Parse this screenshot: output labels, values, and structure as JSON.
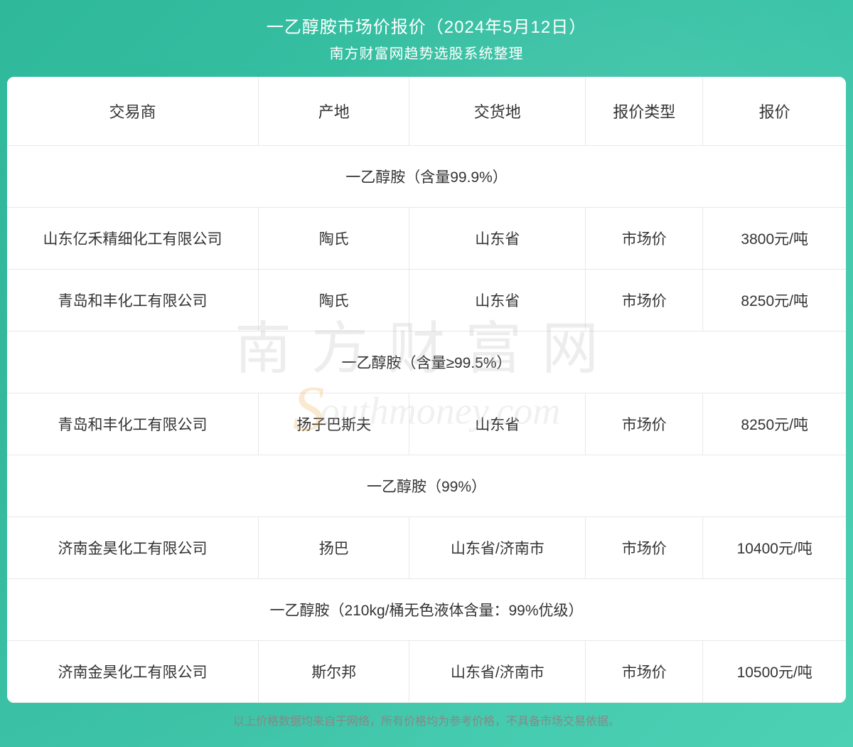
{
  "header": {
    "title": "一乙醇胺市场价报价（2024年5月12日）",
    "subtitle": "南方财富网趋势选股系统整理"
  },
  "table": {
    "columns": [
      "交易商",
      "产地",
      "交货地",
      "报价类型",
      "报价"
    ],
    "sections": [
      {
        "label": "一乙醇胺（含量99.9%）",
        "rows": [
          {
            "trader": "山东亿禾精细化工有限公司",
            "origin": "陶氏",
            "delivery": "山东省",
            "type": "市场价",
            "price": "3800元/吨"
          },
          {
            "trader": "青岛和丰化工有限公司",
            "origin": "陶氏",
            "delivery": "山东省",
            "type": "市场价",
            "price": "8250元/吨"
          }
        ]
      },
      {
        "label": "一乙醇胺（含量≥99.5%）",
        "rows": [
          {
            "trader": "青岛和丰化工有限公司",
            "origin": "扬子巴斯夫",
            "delivery": "山东省",
            "type": "市场价",
            "price": "8250元/吨"
          }
        ]
      },
      {
        "label": "一乙醇胺（99%）",
        "rows": [
          {
            "trader": "济南金昊化工有限公司",
            "origin": "扬巴",
            "delivery": "山东省/济南市",
            "type": "市场价",
            "price": "10400元/吨"
          }
        ]
      },
      {
        "label": "一乙醇胺（210kg/桶无色液体含量：99%优级）",
        "rows": [
          {
            "trader": "济南金昊化工有限公司",
            "origin": "斯尔邦",
            "delivery": "山东省/济南市",
            "type": "市场价",
            "price": "10500元/吨"
          }
        ]
      }
    ]
  },
  "footer": {
    "text": "以上价格数据均来自于网络，所有价格均为参考价格，不具备市场交易依据。"
  },
  "watermark": {
    "cn": "南方财富网",
    "en_prefix": "S",
    "en_rest": "outhmoney.com"
  },
  "styling": {
    "bg_gradient_start": "#2fb89a",
    "bg_gradient_end": "#4dd1b5",
    "text_color": "#333333",
    "header_text_color": "#ffffff",
    "border_color": "#e8e8e8",
    "footer_color": "#888888",
    "table_bg": "#ffffff",
    "border_radius": 10,
    "title_fontsize": 24,
    "subtitle_fontsize": 20,
    "th_fontsize": 22,
    "td_fontsize": 21,
    "footer_fontsize": 16
  }
}
